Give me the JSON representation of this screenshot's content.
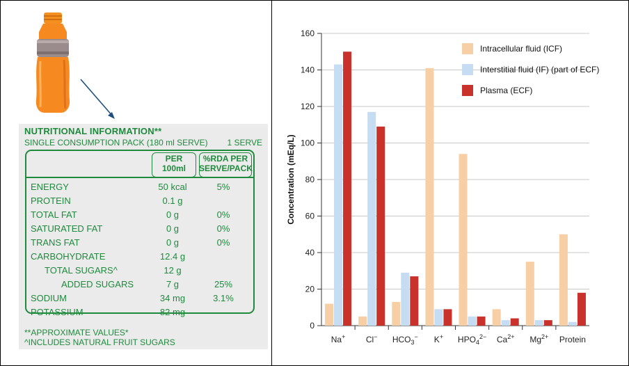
{
  "nutrition": {
    "title": "NUTRITIONAL INFORMATION**",
    "subtitle": "SINGLE CONSUMPTION PACK (180 ml SERVE)",
    "serves": "1 SERVE",
    "col_amount": [
      "PER",
      "100ml"
    ],
    "col_rda": [
      "%RDA PER",
      "SERVE/PACK"
    ],
    "rows": [
      {
        "name": "ENERGY",
        "amount": "50 kcal",
        "rda": "5%"
      },
      {
        "name": "PROTEIN",
        "amount": "0.1 g",
        "rda": ""
      },
      {
        "name": "TOTAL FAT",
        "amount": "0 g",
        "rda": "0%"
      },
      {
        "name": "SATURATED FAT",
        "amount": "0 g",
        "rda": "0%"
      },
      {
        "name": "TRANS FAT",
        "amount": "0 g",
        "rda": "0%"
      },
      {
        "name": "CARBOHYDRATE",
        "amount": "12.4 g",
        "rda": ""
      },
      {
        "name": "TOTAL SUGARS^",
        "amount": "12 g",
        "rda": ""
      },
      {
        "name": "ADDED SUGARS",
        "amount": "7 g",
        "rda": "25%"
      },
      {
        "name": "SODIUM",
        "amount": "34 mg",
        "rda": "3.1%"
      },
      {
        "name": "POTASSIUM",
        "amount": "82 mg",
        "rda": ""
      }
    ],
    "footnote1": "**APPROXIMATE VALUES*",
    "footnote2": "^INCLUDES NATURAL FRUIT SUGARS"
  },
  "colors": {
    "label_green": "#1e8a3c",
    "bottle_orange": "#f6891f"
  },
  "chart_data": {
    "type": "bar",
    "ylabel": "Concentration (mEq/L)",
    "ylim": [
      0,
      160
    ],
    "yticks": [
      0,
      20,
      40,
      60,
      80,
      100,
      120,
      140,
      160
    ],
    "categories": [
      {
        "base": "Na",
        "sup": "+",
        "sub": ""
      },
      {
        "base": "Cl",
        "sup": "−",
        "sub": ""
      },
      {
        "base": "HCO",
        "sub": "3",
        "sup": "−"
      },
      {
        "base": "K",
        "sup": "+",
        "sub": ""
      },
      {
        "base": "HPO",
        "sub": "4",
        "sup": "2−"
      },
      {
        "base": "Ca",
        "sup": "2+",
        "sub": ""
      },
      {
        "base": "Mg",
        "sup": "2+",
        "sub": ""
      },
      {
        "base": "Protein",
        "sup": "",
        "sub": ""
      }
    ],
    "series": [
      {
        "name": "Intracellular fluid (ICF)",
        "color": "#f7cfa4",
        "values": [
          12,
          5,
          13,
          141,
          94,
          9,
          35,
          50
        ]
      },
      {
        "name": "Interstitial fluid (IF) (part of ECF)",
        "color": "#c5dcf2",
        "values": [
          143,
          117,
          29,
          9,
          5,
          3,
          3,
          2
        ]
      },
      {
        "name": "Plasma (ECF)",
        "color": "#c8322a",
        "values": [
          150,
          109,
          27,
          9,
          5,
          4,
          3,
          18
        ]
      }
    ],
    "legend_position": "top-right",
    "grid": true
  }
}
